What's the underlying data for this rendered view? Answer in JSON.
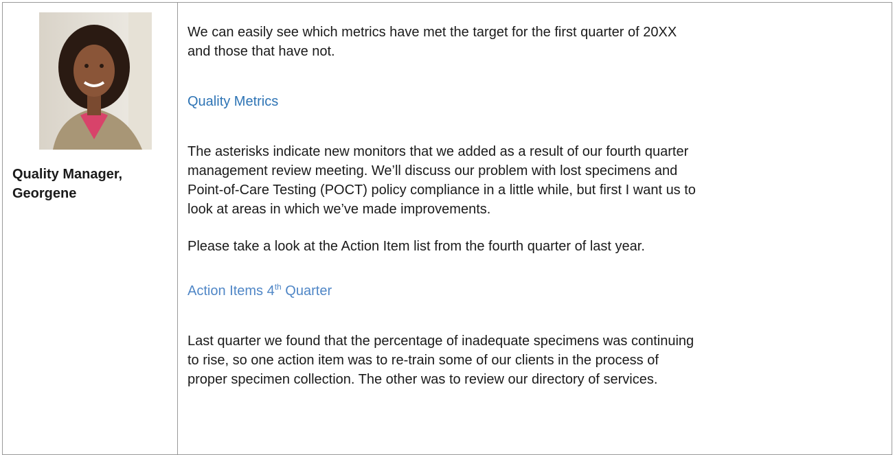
{
  "caption": {
    "lines": [
      "Quality Manager,",
      "Georgene"
    ]
  },
  "intro": {
    "lines": [
      "We can easily see which metrics have met the target for the first quarter of 20XX",
      "and those that have not."
    ]
  },
  "heading_1": "Quality Metrics",
  "paragraph_1": {
    "lines": [
      "The asterisks indicate new monitors that we added as a result of our fourth quarter",
      "management review meeting. We’ll discuss our problem with lost specimens and",
      "Point-of-Care Testing (POCT) policy compliance in a little while, but first I want us to",
      "look at areas in which we’ve made improvements."
    ]
  },
  "paragraph_2": {
    "lines": [
      "Please take a look at the Action Item list from the fourth quarter of last year."
    ]
  },
  "heading_2": {
    "before": "Action Items 4",
    "sup": "th",
    "after": "Quarter"
  },
  "paragraph_3": {
    "lines": [
      "Last quarter we found that the percentage of inadequate specimens was continuing",
      "to rise, so one action item was to re-train some of our clients in the process of",
      "proper specimen collection. The other was to review our directory of services."
    ]
  }
}
